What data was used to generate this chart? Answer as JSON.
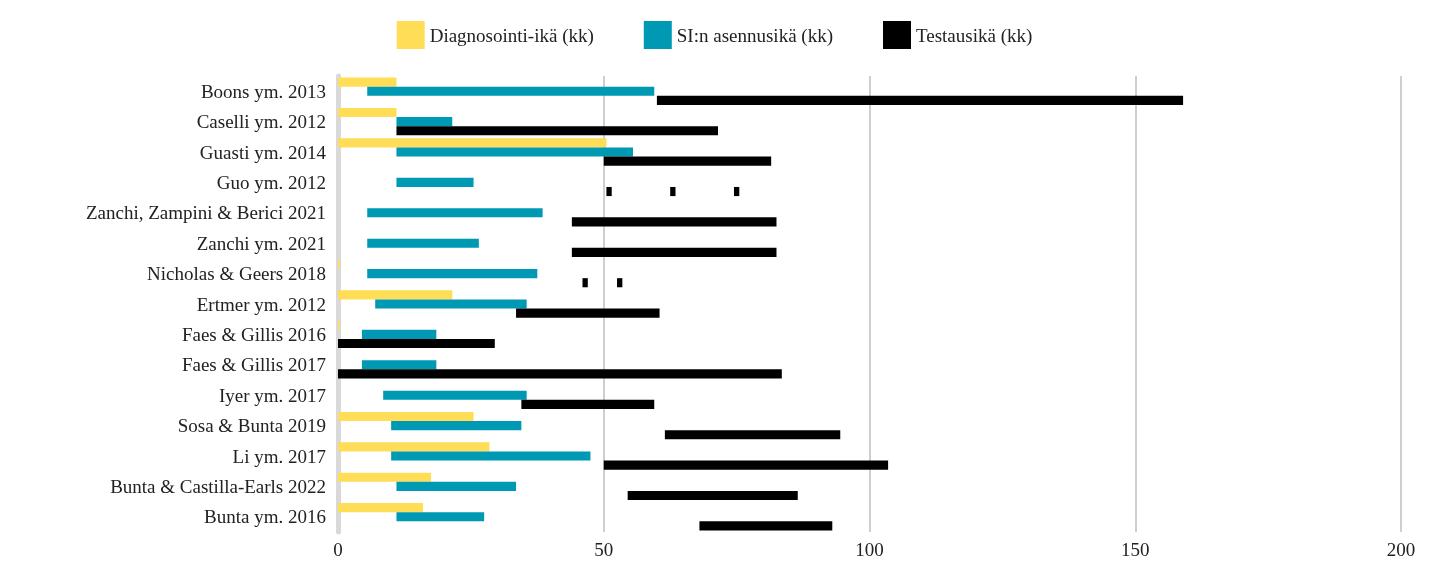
{
  "chart_data": {
    "type": "bar",
    "orientation": "horizontal",
    "legend": "top",
    "grid": "x",
    "xlim": [
      0,
      200
    ],
    "xticks": [
      0,
      50,
      100,
      150,
      200
    ],
    "categories": [
      "Boons ym. 2013",
      "Caselli ym. 2012",
      "Guasti ym. 2014",
      "Guo ym. 2012",
      "Zanchi, Zampini & Berici 2021",
      "Zanchi ym. 2021",
      "Nicholas & Geers 2018",
      "Ertmer ym. 2012",
      "Faes & Gillis 2016",
      "Faes & Gillis 2017",
      "Iyer ym. 2017",
      "Sosa & Bunta 2019",
      "Li ym. 2017",
      "Bunta & Castilla-Earls 2022",
      "Bunta ym. 2016"
    ],
    "series": [
      {
        "name": "Diagnosointi-ikä (kk)",
        "color": "#ffdd57",
        "base": [
          0,
          0,
          0,
          null,
          null,
          null,
          0,
          0,
          0,
          null,
          null,
          0,
          0,
          0,
          0
        ],
        "values": [
          11,
          11,
          50.5,
          null,
          null,
          null,
          0.3,
          21.5,
          0.3,
          null,
          null,
          25.5,
          28.5,
          17.5,
          16
        ]
      },
      {
        "name": "SI:n asennusikä (kk)",
        "color": "#0099b4",
        "base": [
          5.5,
          11,
          11,
          11,
          5.5,
          5.5,
          5.5,
          7,
          4.5,
          4.5,
          8.5,
          10,
          10,
          11,
          11
        ],
        "values": [
          54,
          10.5,
          44.5,
          14.5,
          33,
          21,
          32,
          28.5,
          14,
          14,
          27,
          24.5,
          37.5,
          22.5,
          16.5
        ]
      },
      {
        "name": "Testausikä (kk)",
        "color": "#000000",
        "base": [
          60,
          11,
          50,
          null,
          44,
          44,
          null,
          33.5,
          0,
          0,
          34.5,
          61.5,
          50,
          54.5,
          68
        ],
        "values": [
          99,
          60.5,
          31.5,
          null,
          38.5,
          38.5,
          null,
          27,
          29.5,
          83.5,
          25,
          33,
          53.5,
          32,
          25
        ]
      },
      {
        "color": "#000000",
        "base": [
          null,
          null,
          null,
          50.5,
          null,
          null,
          46,
          null,
          null,
          null,
          null,
          null,
          null,
          null,
          null
        ],
        "values": [
          null,
          null,
          null,
          1,
          null,
          null,
          1,
          null,
          null,
          null,
          null,
          null,
          null,
          null,
          null
        ]
      },
      {
        "color": "#000000",
        "base": [
          null,
          null,
          null,
          62.5,
          null,
          null,
          52.5,
          null,
          null,
          null,
          null,
          null,
          null,
          null,
          null
        ],
        "values": [
          null,
          null,
          null,
          1,
          null,
          null,
          1,
          null,
          null,
          null,
          null,
          null,
          null,
          null,
          null
        ]
      },
      {
        "color": "#000000",
        "base": [
          null,
          null,
          null,
          74.5,
          null,
          null,
          null,
          null,
          null,
          null,
          null,
          null,
          null,
          null,
          null
        ],
        "values": [
          null,
          null,
          null,
          1,
          null,
          null,
          null,
          null,
          null,
          null,
          null,
          null,
          null,
          null,
          null
        ]
      }
    ]
  }
}
